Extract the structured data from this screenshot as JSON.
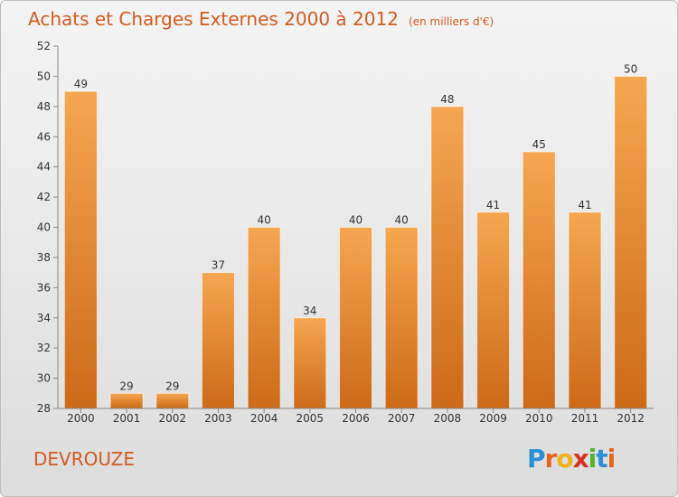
{
  "header": {
    "title": "Achats et Charges Externes 2000 à 2012",
    "unit": "(en milliers d'€)"
  },
  "commune": "DEVROUZE",
  "brand": {
    "letters": [
      "P",
      "r",
      "o",
      "x",
      "i",
      "t",
      "i"
    ],
    "colors": [
      "#2b8fd6",
      "#e8641e",
      "#f2b21a",
      "#d6331e",
      "#58b030",
      "#2b8fd6",
      "#e8641e"
    ]
  },
  "colors": {
    "title": "#d45a20",
    "bar_top": "#f6a651",
    "bar_bottom": "#cc6a18"
  },
  "chart_data": {
    "type": "bar",
    "title": "Achats et Charges Externes 2000 à 2012",
    "xlabel": "",
    "ylabel": "",
    "categories": [
      "2000",
      "2001",
      "2002",
      "2003",
      "2004",
      "2005",
      "2006",
      "2007",
      "2008",
      "2009",
      "2010",
      "2011",
      "2012"
    ],
    "values": [
      49,
      29,
      29,
      37,
      40,
      34,
      40,
      40,
      48,
      41,
      45,
      41,
      50
    ],
    "ylim": [
      28,
      52
    ],
    "yticks": [
      28,
      30,
      32,
      34,
      36,
      38,
      40,
      42,
      44,
      46,
      48,
      50,
      52
    ],
    "grid": false,
    "legend": "none"
  }
}
